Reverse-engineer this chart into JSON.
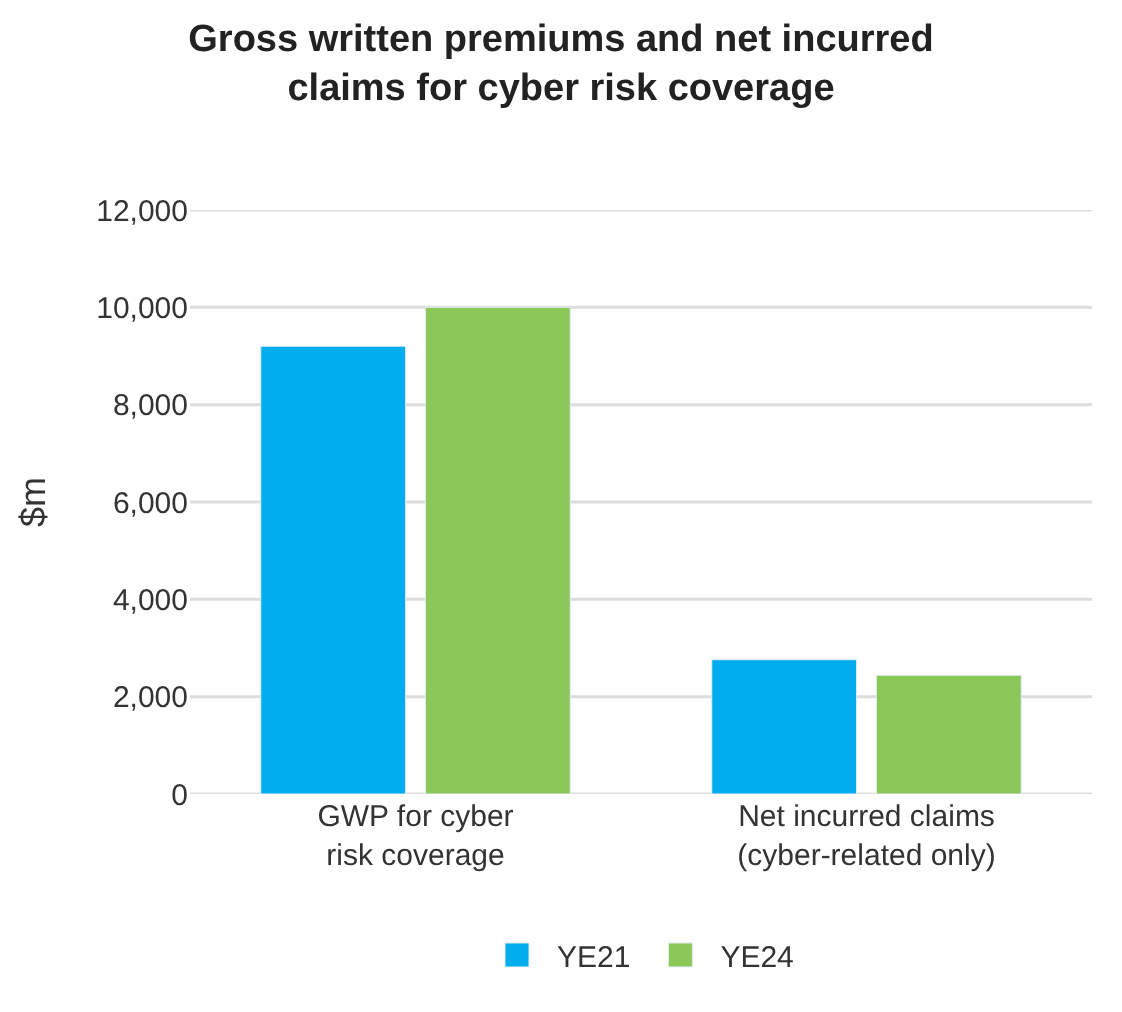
{
  "chart_data": {
    "type": "bar",
    "title": "Gross written premiums and net incurred\nclaims for cyber risk coverage",
    "ylabel": "$m",
    "categories": [
      "GWP for cyber\nrisk coverage",
      "Net incurred claims\n(cyber-related only)"
    ],
    "series": [
      {
        "name": "YE21",
        "color": "#00aeef",
        "values": [
          9200,
          2760
        ]
      },
      {
        "name": "YE24",
        "color": "#8cc75a",
        "values": [
          10000,
          2440
        ]
      }
    ],
    "ylim": [
      0,
      12000
    ],
    "yticks": [
      {
        "value": 0,
        "label": "0"
      },
      {
        "value": 2000,
        "label": "2,000"
      },
      {
        "value": 4000,
        "label": "4,000"
      },
      {
        "value": 6000,
        "label": "6,000"
      },
      {
        "value": 8000,
        "label": "8,000"
      },
      {
        "value": 10000,
        "label": "10,000"
      },
      {
        "value": 12000,
        "label": "12,000"
      }
    ],
    "grid": "y",
    "legend": "bottom"
  }
}
